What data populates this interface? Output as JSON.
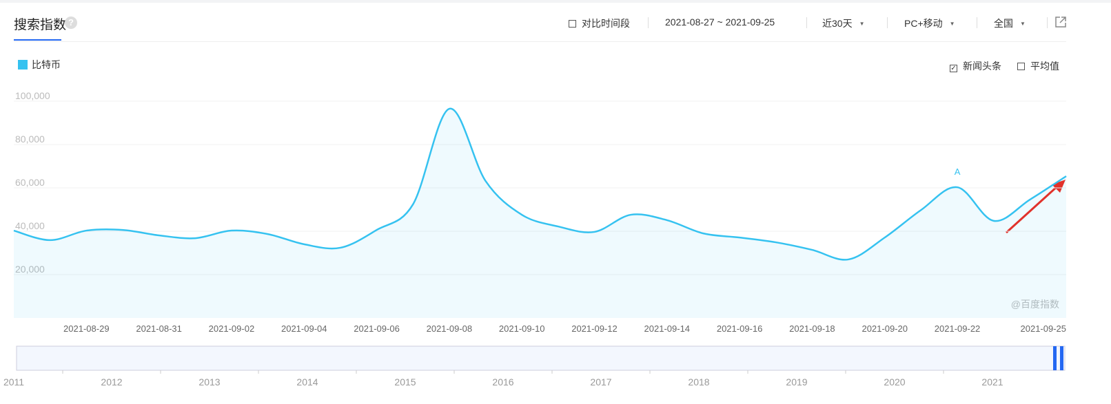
{
  "header": {
    "tab": "搜索指数",
    "compare": "对比时间段",
    "date_range": "2021-08-27 ~ 2021-09-25",
    "period": "近30天",
    "device": "PC+移动",
    "region": "全国",
    "news": "新闻头条",
    "average": "平均值"
  },
  "watermark": "@百度指数",
  "timeline": {
    "labels": [
      "2011",
      "2012",
      "2013",
      "2014",
      "2015",
      "2016",
      "2017",
      "2018",
      "2019",
      "2020",
      "2021"
    ]
  },
  "chart_data": {
    "type": "line",
    "categories": [
      null,
      null,
      "2021-08-29",
      null,
      "2021-08-31",
      null,
      "2021-09-02",
      null,
      "2021-09-04",
      null,
      "2021-09-06",
      null,
      "2021-09-08",
      null,
      "2021-09-10",
      null,
      "2021-09-12",
      null,
      "2021-09-14",
      null,
      "2021-09-16",
      null,
      "2021-09-18",
      null,
      "2021-09-20",
      null,
      "2021-09-22",
      null,
      null,
      "2021-09-25"
    ],
    "series": [
      {
        "name": "比特币",
        "color": "#35c2f0",
        "values": [
          40300,
          35900,
          40300,
          40600,
          38100,
          36800,
          40300,
          38700,
          34000,
          32400,
          40600,
          52400,
          96500,
          63200,
          47600,
          42200,
          39700,
          47600,
          45100,
          39000,
          37100,
          34900,
          31400,
          27000,
          37100,
          49800,
          60300,
          44800,
          54600,
          65400
        ]
      }
    ],
    "annotations": [
      {
        "text": "A",
        "category": "2021-09-22"
      }
    ],
    "ylim": [
      0,
      100000
    ],
    "yticks": [
      {
        "value": 20000,
        "label": "20,000"
      },
      {
        "value": 40000,
        "label": "40,000"
      },
      {
        "value": 60000,
        "label": "60,000"
      },
      {
        "value": 80000,
        "label": "80,000"
      },
      {
        "value": 100000,
        "label": "100,000"
      }
    ],
    "grid": true
  }
}
